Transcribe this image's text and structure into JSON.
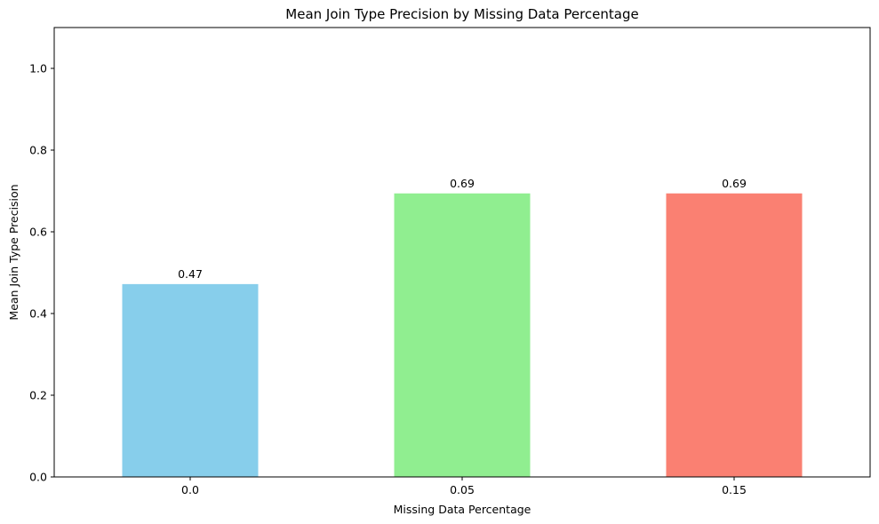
{
  "chart_data": {
    "type": "bar",
    "title": "Mean Join Type Precision by Missing Data Percentage",
    "xlabel": "Missing Data Percentage",
    "ylabel": "Mean Join Type Precision",
    "categories": [
      "0.0",
      "0.05",
      "0.15"
    ],
    "values": [
      0.472,
      0.694,
      0.694
    ],
    "value_labels": [
      "0.47",
      "0.69",
      "0.69"
    ],
    "colors": [
      "#87CEEB",
      "#90EE90",
      "#FA8072"
    ],
    "ylim": [
      0,
      1.1
    ],
    "yticks": [
      0.0,
      0.2,
      0.4,
      0.6,
      0.8,
      1.0
    ],
    "ytick_labels": [
      "0.0",
      "0.2",
      "0.4",
      "0.6",
      "0.8",
      "1.0"
    ],
    "grid": false,
    "legend": "none"
  }
}
